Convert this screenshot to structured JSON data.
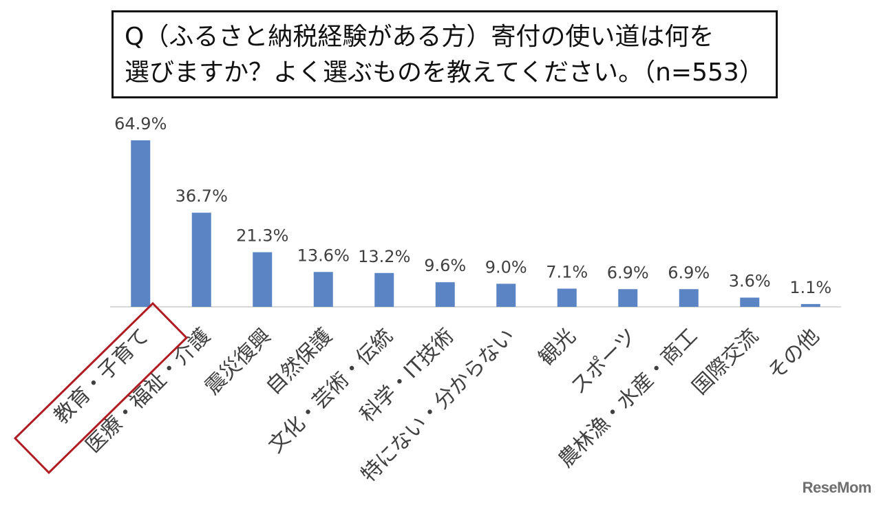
{
  "chart_data": {
    "type": "bar",
    "title_lines": [
      "Q（ふるさと納税経験がある方）寄付の使い道は何を",
      "選びますか？よく選ぶものを教えてください。（n=553）"
    ],
    "categories": [
      "教育・子育て",
      "医療・福祉・介護",
      "震災復興",
      "自然保護",
      "文化・芸術・伝統",
      "科学・IT技術",
      "特にない・分からない",
      "観光",
      "スポーツ",
      "農林漁・水産・商工",
      "国際交流",
      "その他"
    ],
    "values": [
      64.9,
      36.7,
      21.3,
      13.6,
      13.2,
      9.6,
      9.0,
      7.1,
      6.9,
      6.9,
      3.6,
      1.1
    ],
    "data_labels": [
      "64.9%",
      "36.7%",
      "21.3%",
      "13.6%",
      "13.2%",
      "9.6%",
      "9.0%",
      "7.1%",
      "6.9%",
      "6.9%",
      "3.6%",
      "1.1%"
    ],
    "ylim": [
      0,
      70
    ],
    "grid": false,
    "highlighted_category": "教育・子育て",
    "colors": {
      "bar": "#5b84c4",
      "highlight": "#b01c22",
      "axis": "#d9d9d9"
    }
  },
  "watermark": "ReseMom"
}
